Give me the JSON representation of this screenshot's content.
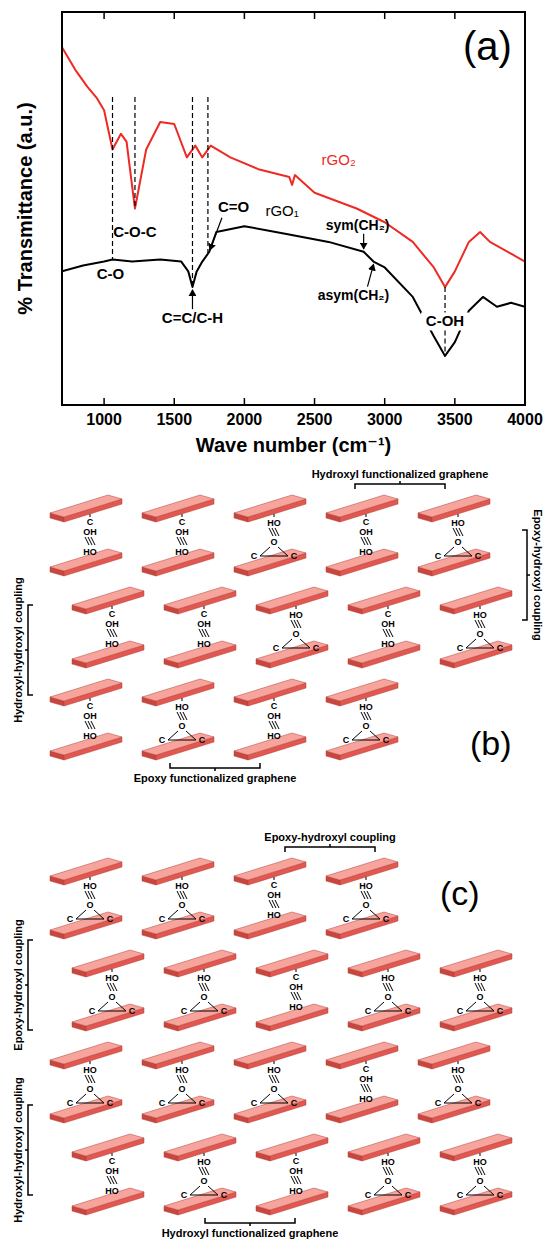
{
  "chart_data": {
    "type": "line",
    "title": "(a)",
    "x_label": "Wave number (cm⁻¹)",
    "y_label": "% Transmittance (a.u.)",
    "xlim": [
      700,
      4000
    ],
    "xticks": [
      1000,
      1500,
      2000,
      2500,
      3000,
      3500,
      4000
    ],
    "ylim": [
      0,
      100
    ],
    "tick_labels": "x",
    "grid": false,
    "series": [
      {
        "name": "rGO₂",
        "color": "#ee2a24",
        "x": [
          700,
          800,
          880,
          950,
          1000,
          1060,
          1120,
          1160,
          1220,
          1300,
          1400,
          1500,
          1590,
          1650,
          1700,
          1760,
          1900,
          2100,
          2320,
          2340,
          2360,
          2500,
          2800,
          3000,
          3200,
          3350,
          3430,
          3500,
          3600,
          3680,
          3750,
          3900,
          4000
        ],
        "values": [
          91,
          85,
          81,
          78,
          75,
          65,
          69,
          67,
          50,
          65,
          72,
          71.5,
          63,
          66,
          63,
          66,
          63,
          60,
          58,
          56,
          58.5,
          54,
          50,
          46.5,
          41.5,
          35,
          30,
          34,
          41.5,
          44,
          41.5,
          38.5,
          36.5
        ]
      },
      {
        "name": "rGO₁",
        "color": "#000000",
        "x": [
          700,
          850,
          1000,
          1060,
          1200,
          1400,
          1550,
          1600,
          1630,
          1660,
          1700,
          1750,
          1800,
          2000,
          2300,
          2600,
          2850,
          2920,
          3000,
          3200,
          3350,
          3430,
          3500,
          3600,
          3700,
          3800,
          3900,
          4000
        ],
        "values": [
          34,
          35.5,
          36.5,
          37,
          36.5,
          37,
          36.5,
          34,
          30,
          34,
          36.5,
          39,
          44,
          45.5,
          43.5,
          41.5,
          39,
          36.5,
          35,
          27.5,
          17.5,
          12.5,
          16,
          24,
          27.5,
          25,
          26,
          25
        ]
      }
    ],
    "annotations": [
      {
        "text": "C-O-C",
        "x": 1220
      },
      {
        "text": "C-O",
        "x": 1060
      },
      {
        "text": "C=C/C-H",
        "x": 1630
      },
      {
        "text": "C=O",
        "x": 1740
      },
      {
        "text": "sym(CH₂)",
        "x": 2850
      },
      {
        "text": "asym(CH₂)",
        "x": 2920
      },
      {
        "text": "C-OH",
        "x": 3430
      }
    ]
  },
  "glyphs": {
    "carbon": "C",
    "hydroxyl_up": "OH",
    "hydroxyl_down": "HO",
    "oxygen": "O"
  },
  "diagrams": [
    {
      "label": "(b)",
      "callouts": [
        {
          "text": "Hydroxyl functionalized graphene",
          "side": "top"
        },
        {
          "text": "Epoxy-hydroxyl coupling",
          "side": "right"
        },
        {
          "text": "Hydroxyl-hydroxyl coupling",
          "side": "left"
        },
        {
          "text": "Epoxy functionalized graphene",
          "side": "bottom"
        }
      ],
      "links": [
        "hydroxyl-hydroxyl",
        "hydroxyl-hydroxyl",
        "epoxy-hydroxyl",
        "hydroxyl-hydroxyl",
        "epoxy-hydroxyl",
        "hydroxyl-hydroxyl",
        "hydroxyl-hydroxyl",
        "epoxy-hydroxyl",
        "hydroxyl-hydroxyl",
        "epoxy-hydroxyl",
        "hydroxyl-hydroxyl",
        "epoxy-hydroxyl",
        "hydroxyl-hydroxyl",
        "epoxy-hydroxyl"
      ]
    },
    {
      "label": "(c)",
      "callouts": [
        {
          "text": "Epoxy-hydroxyl coupling",
          "side": "top"
        },
        {
          "text": "Epoxy-hydroxyl coupling",
          "side": "left"
        },
        {
          "text": "Hydroxyl-hydroxyl coupling",
          "side": "left"
        },
        {
          "text": "Hydroxyl functionalized graphene",
          "side": "bottom"
        }
      ],
      "links": [
        "epoxy-hydroxyl",
        "epoxy-hydroxyl",
        "hydroxyl-hydroxyl",
        "epoxy-hydroxyl",
        "epoxy-hydroxyl",
        "epoxy-hydroxyl",
        "hydroxyl-hydroxyl",
        "epoxy-hydroxyl",
        "epoxy-hydroxyl",
        "epoxy-hydroxyl",
        "epoxy-hydroxyl",
        "epoxy-hydroxyl",
        "hydroxyl-hydroxyl",
        "epoxy-hydroxyl",
        "hydroxyl-hydroxyl",
        "epoxy-hydroxyl",
        "hydroxyl-hydroxyl",
        "epoxy-hydroxyl",
        "epoxy-hydroxyl"
      ]
    }
  ]
}
